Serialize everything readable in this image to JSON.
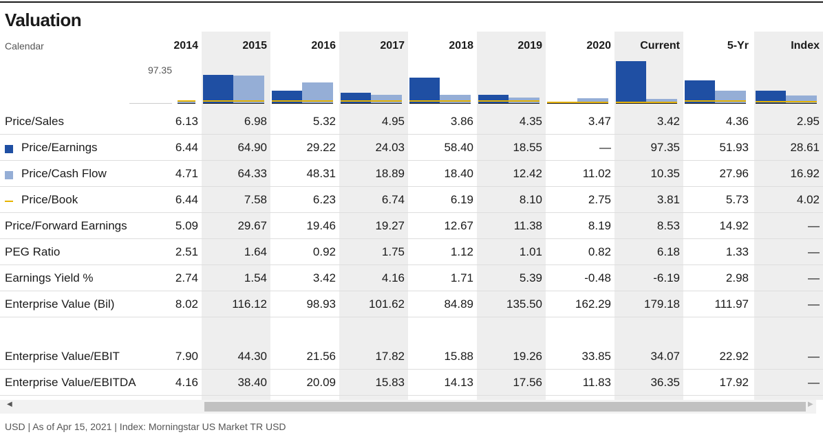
{
  "title": "Valuation",
  "first_header": "Calendar",
  "columns": [
    "2014",
    "2015",
    "2016",
    "2017",
    "2018",
    "2019",
    "2020",
    "Current",
    "5-Yr",
    "Index"
  ],
  "scale_label": "97.35",
  "colors": {
    "pe": "#1f4fa3",
    "pcf": "#95aed6",
    "pb": "#e7b400",
    "shade": "#eeeeee"
  },
  "rows": [
    {
      "label": "Price/Sales",
      "legend": null,
      "values": [
        "6.13",
        "6.98",
        "5.32",
        "4.95",
        "3.86",
        "4.35",
        "3.47",
        "3.42",
        "4.36",
        "2.95"
      ]
    },
    {
      "label": "Price/Earnings",
      "legend": "square-dark",
      "values": [
        "6.44",
        "64.90",
        "29.22",
        "24.03",
        "58.40",
        "18.55",
        "—",
        "97.35",
        "51.93",
        "28.61"
      ]
    },
    {
      "label": "Price/Cash Flow",
      "legend": "square-light",
      "values": [
        "4.71",
        "64.33",
        "48.31",
        "18.89",
        "18.40",
        "12.42",
        "11.02",
        "10.35",
        "27.96",
        "16.92"
      ]
    },
    {
      "label": "Price/Book",
      "legend": "line-yellow",
      "values": [
        "6.44",
        "7.58",
        "6.23",
        "6.74",
        "6.19",
        "8.10",
        "2.75",
        "3.81",
        "5.73",
        "4.02"
      ]
    },
    {
      "label": "Price/Forward Earnings",
      "legend": null,
      "values": [
        "5.09",
        "29.67",
        "19.46",
        "19.27",
        "12.67",
        "11.38",
        "8.19",
        "8.53",
        "14.92",
        "—"
      ]
    },
    {
      "label": "PEG Ratio",
      "legend": null,
      "values": [
        "2.51",
        "1.64",
        "0.92",
        "1.75",
        "1.12",
        "1.01",
        "0.82",
        "6.18",
        "1.33",
        "—"
      ]
    },
    {
      "label": "Earnings Yield %",
      "legend": null,
      "values": [
        "2.74",
        "1.54",
        "3.42",
        "4.16",
        "1.71",
        "5.39",
        "-0.48",
        "-6.19",
        "2.98",
        "—"
      ]
    },
    {
      "label": "Enterprise Value (Bil)",
      "legend": null,
      "values": [
        "8.02",
        "116.12",
        "98.93",
        "101.62",
        "84.89",
        "135.50",
        "162.29",
        "179.18",
        "111.97",
        "—"
      ]
    },
    {
      "label": "Enterprise Value/EBIT",
      "legend": null,
      "values": [
        "7.90",
        "44.30",
        "21.56",
        "17.82",
        "15.88",
        "19.26",
        "33.85",
        "34.07",
        "22.92",
        "—"
      ]
    },
    {
      "label": "Enterprise Value/EBITDA",
      "legend": null,
      "values": [
        "4.16",
        "38.40",
        "20.09",
        "15.83",
        "14.13",
        "17.56",
        "11.83",
        "36.35",
        "17.92",
        "—"
      ]
    }
  ],
  "mini_chart": {
    "max": 97.35,
    "series": {
      "pe": [
        6.44,
        64.9,
        29.22,
        24.03,
        58.4,
        18.55,
        null,
        97.35,
        51.93,
        28.61
      ],
      "pcf": [
        4.71,
        64.33,
        48.31,
        18.89,
        18.4,
        12.42,
        11.02,
        10.35,
        27.96,
        16.92
      ],
      "pb": [
        6.44,
        7.58,
        6.23,
        6.74,
        6.19,
        8.1,
        2.75,
        3.81,
        5.73,
        4.02
      ]
    }
  },
  "footer": "USD | As of Apr 15, 2021 | Index: Morningstar US Market TR USD",
  "scroll": {
    "left_arrow": "◀",
    "right_arrow": "▶"
  }
}
